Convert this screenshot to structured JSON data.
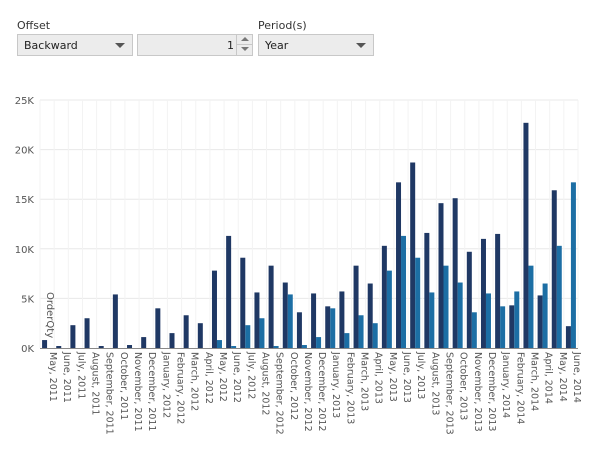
{
  "controls": {
    "offset_label": "Offset",
    "offset_value": "Backward",
    "offset_number": "1",
    "period_label": "Period(s)",
    "period_value": "Year"
  },
  "colors": {
    "series_dark": "#1f3864",
    "series_light": "#1c6ea4",
    "axis": "#888888",
    "grid": "#e8e8e8",
    "text": "#555555"
  },
  "chart_data": {
    "type": "bar",
    "ylabel": "OrderQty",
    "ylim": [
      0,
      25000
    ],
    "y_ticks": [
      {
        "value": 0,
        "label": "0K"
      },
      {
        "value": 5000,
        "label": "5K"
      },
      {
        "value": 10000,
        "label": "10K"
      },
      {
        "value": 15000,
        "label": "15K"
      },
      {
        "value": 20000,
        "label": "20K"
      },
      {
        "value": 25000,
        "label": "25K"
      }
    ],
    "grid": true,
    "categories": [
      "May, 2011",
      "June, 2011",
      "July, 2011",
      "August, 2011",
      "September, 2011",
      "October, 2011",
      "November, 2011",
      "December, 2011",
      "January, 2012",
      "February, 2012",
      "March, 2012",
      "April, 2012",
      "May, 2012",
      "June, 2012",
      "July, 2012",
      "August, 2012",
      "September, 2012",
      "October, 2012",
      "November, 2012",
      "December, 2012",
      "January, 2013",
      "February, 2013",
      "March, 2013",
      "April, 2013",
      "May, 2013",
      "June, 2013",
      "July, 2013",
      "August, 2013",
      "September, 2013",
      "October, 2013",
      "November, 2013",
      "December, 2013",
      "January, 2014",
      "February, 2014",
      "March, 2014",
      "April, 2014",
      "May, 2014",
      "June, 2014"
    ],
    "series": [
      {
        "values": [
          800,
          200,
          2300,
          3000,
          200,
          5400,
          300,
          1100,
          4000,
          1500,
          3300,
          2500,
          7800,
          11300,
          9100,
          5600,
          8300,
          6600,
          3600,
          5500,
          4200,
          5700,
          8300,
          6500,
          10300,
          16700,
          18700,
          11600,
          14600,
          15100,
          9700,
          11000,
          11500,
          4300,
          22700,
          5300,
          15900,
          2200
        ]
      },
      {
        "values": [
          0,
          0,
          0,
          0,
          0,
          0,
          0,
          0,
          0,
          0,
          0,
          0,
          800,
          200,
          2300,
          3000,
          200,
          5400,
          300,
          1100,
          4000,
          1500,
          3300,
          2500,
          7800,
          11300,
          9100,
          5600,
          8300,
          6600,
          3600,
          5500,
          4200,
          5700,
          8300,
          6500,
          10300,
          16700
        ]
      }
    ]
  }
}
